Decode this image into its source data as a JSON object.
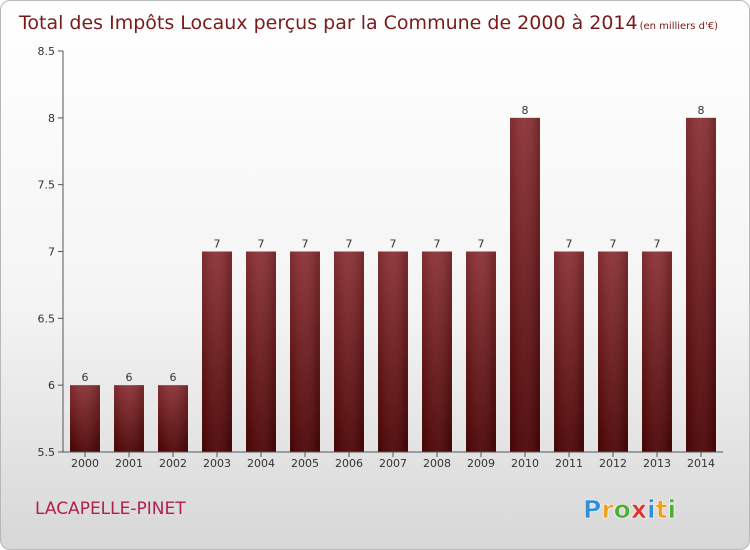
{
  "chart_data": {
    "type": "bar",
    "title": "Total des Impôts Locaux perçus par la Commune de 2000 à 2014",
    "title_unit": "(en milliers d'€)",
    "xlabel": "",
    "ylabel": "",
    "categories": [
      "2000",
      "2001",
      "2002",
      "2003",
      "2004",
      "2005",
      "2006",
      "2007",
      "2008",
      "2009",
      "2010",
      "2011",
      "2012",
      "2013",
      "2014"
    ],
    "values": [
      6,
      6,
      6,
      7,
      7,
      7,
      7,
      7,
      7,
      7,
      8,
      7,
      7,
      7,
      8
    ],
    "data_labels": [
      "6",
      "6",
      "6",
      "7",
      "7",
      "7",
      "7",
      "7",
      "7",
      "7",
      "8",
      "7",
      "7",
      "7",
      "8"
    ],
    "ylim": [
      5.5,
      8.5
    ],
    "yticks": [
      5.5,
      6,
      6.5,
      7,
      7.5,
      8,
      8.5
    ],
    "ytick_labels": [
      "5.5",
      "6",
      "6.5",
      "7",
      "7.5",
      "8",
      "8.5"
    ],
    "grid": false,
    "legend": "none",
    "bar_color": "#6e1414"
  },
  "commune": {
    "name": "LACAPELLE-PINET"
  },
  "logo": {
    "letters": [
      "P",
      "r",
      "o",
      "x",
      "i",
      "t",
      "i"
    ],
    "colors": [
      "#2f8fd8",
      "#f0a020",
      "#4fae34",
      "#e03030",
      "#2f8fd8",
      "#f0a020",
      "#4fae34"
    ]
  }
}
